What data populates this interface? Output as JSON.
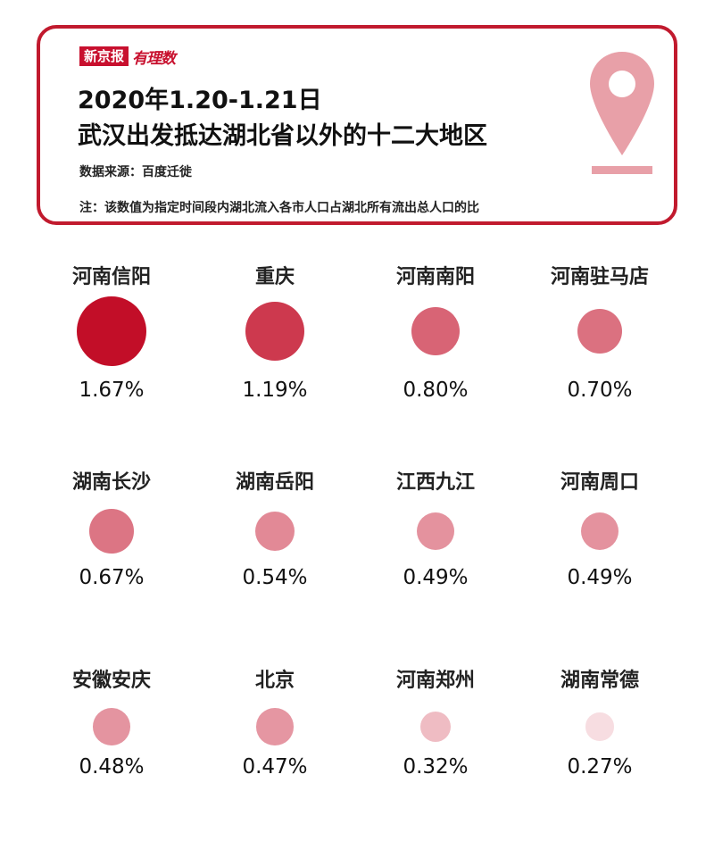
{
  "header": {
    "logo_main": "新京报",
    "logo_tail": "有理数",
    "title_line1": "2020年1.20-1.21日",
    "title_line2": "武汉出发抵达湖北省以外的十二大地区",
    "source": "数据来源：百度迁徙",
    "note": "注：该数值为指定时间段内湖北流入各市人口占湖北所有流出总人口的比",
    "pin_icon": "location-pin-icon"
  },
  "colors": {
    "border": "#c11a2e",
    "pin": "#e8a0a8",
    "bubble_max": "#c20e28",
    "bubble_min": "#f7dde1"
  },
  "chart_data": {
    "type": "bubble",
    "title": "2020年1.20-1.21日 武汉出发抵达湖北省以外的十二大地区",
    "unit": "%",
    "categories": [
      "河南信阳",
      "重庆",
      "河南南阳",
      "河南驻马店",
      "湖南长沙",
      "湖南岳阳",
      "江西九江",
      "河南周口",
      "安徽安庆",
      "北京",
      "河南郑州",
      "湖南常德"
    ],
    "values": [
      1.67,
      1.19,
      0.8,
      0.7,
      0.67,
      0.54,
      0.49,
      0.49,
      0.48,
      0.47,
      0.32,
      0.27
    ],
    "value_labels": [
      "1.67%",
      "1.19%",
      "0.80%",
      "0.70%",
      "0.67%",
      "0.54%",
      "0.49%",
      "0.49%",
      "0.48%",
      "0.47%",
      "0.32%",
      "0.27%"
    ]
  }
}
